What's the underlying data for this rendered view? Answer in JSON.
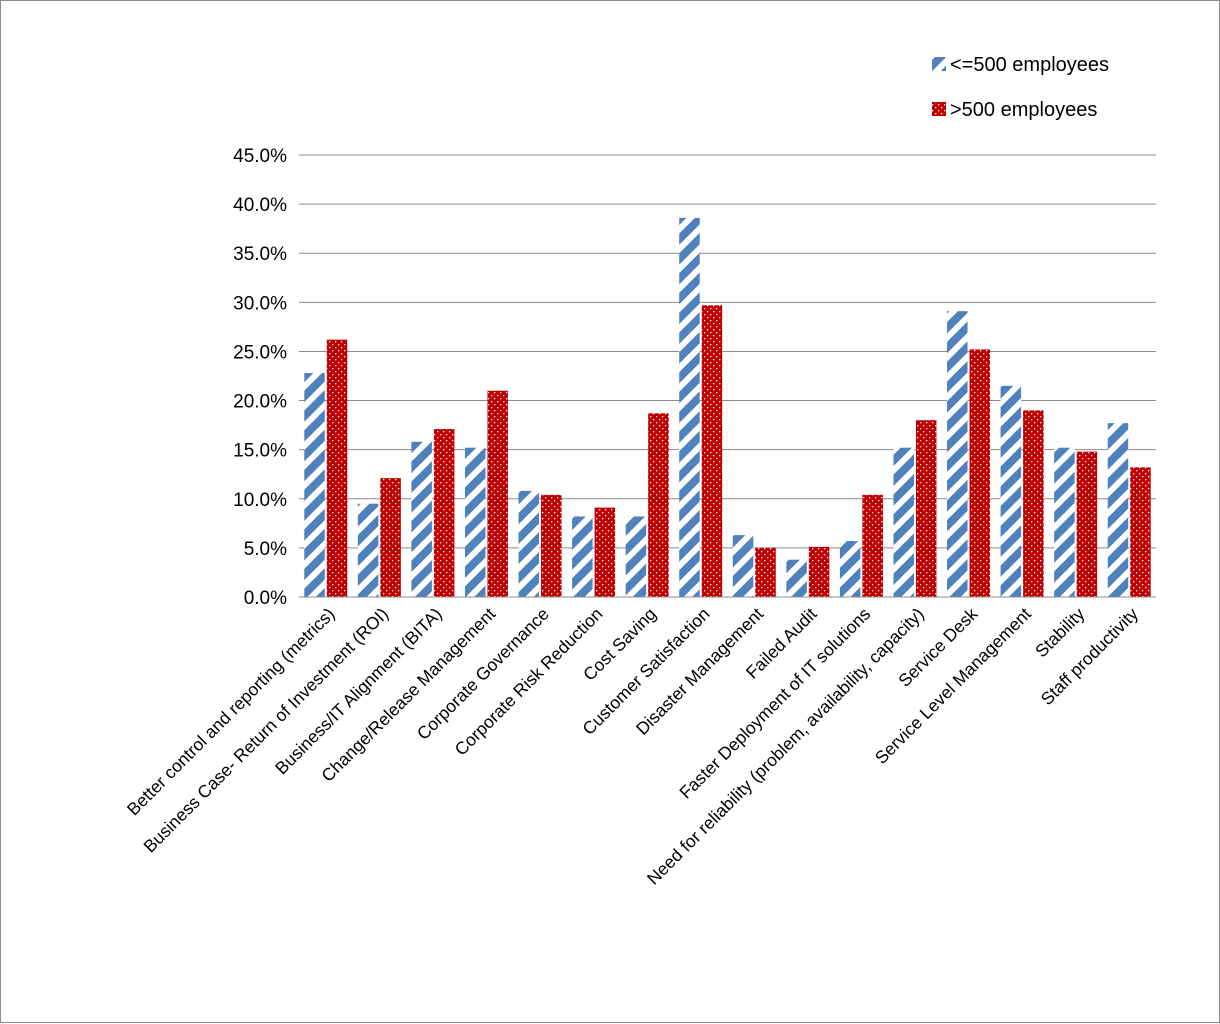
{
  "chart_data": {
    "type": "bar",
    "title": "",
    "xlabel": "",
    "ylabel": "",
    "ylim": [
      0,
      45
    ],
    "y_ticks": [
      "0.0%",
      "5.0%",
      "10.0%",
      "15.0%",
      "20.0%",
      "25.0%",
      "30.0%",
      "35.0%",
      "40.0%",
      "45.0%"
    ],
    "grid": "horizontal",
    "legend_position": "top-right",
    "categories": [
      "Better control and reporting (metrics)",
      "Business Case- Return of Investment (ROI)",
      "Business/IT Alignment (BITA)",
      "Change/Release Management",
      "Corporate Governance",
      "Corporate Risk Reduction",
      "Cost Saving",
      "Customer Satisfaction",
      "Disaster Management",
      "Failed Audit",
      "Faster Deployment of IT solutions",
      "Need for reliability (problem, availability, capacity)",
      "Service Desk",
      "Service Level Management",
      "Stability",
      "Staff productivity"
    ],
    "series": [
      {
        "name": "<=500 employees",
        "color": "#4f81bd",
        "pattern": "diagonal-stripes",
        "values": [
          22.8,
          9.5,
          15.8,
          15.2,
          10.8,
          8.2,
          8.2,
          38.6,
          6.3,
          3.8,
          5.7,
          15.2,
          29.1,
          21.5,
          15.2,
          17.7
        ]
      },
      {
        "name": ">500 employees",
        "color": "#c00000",
        "pattern": "dots",
        "values": [
          26.2,
          12.1,
          17.1,
          21.0,
          10.4,
          9.1,
          18.7,
          29.7,
          5.0,
          5.1,
          10.4,
          18.0,
          25.2,
          19.0,
          14.8,
          13.2
        ]
      }
    ]
  }
}
